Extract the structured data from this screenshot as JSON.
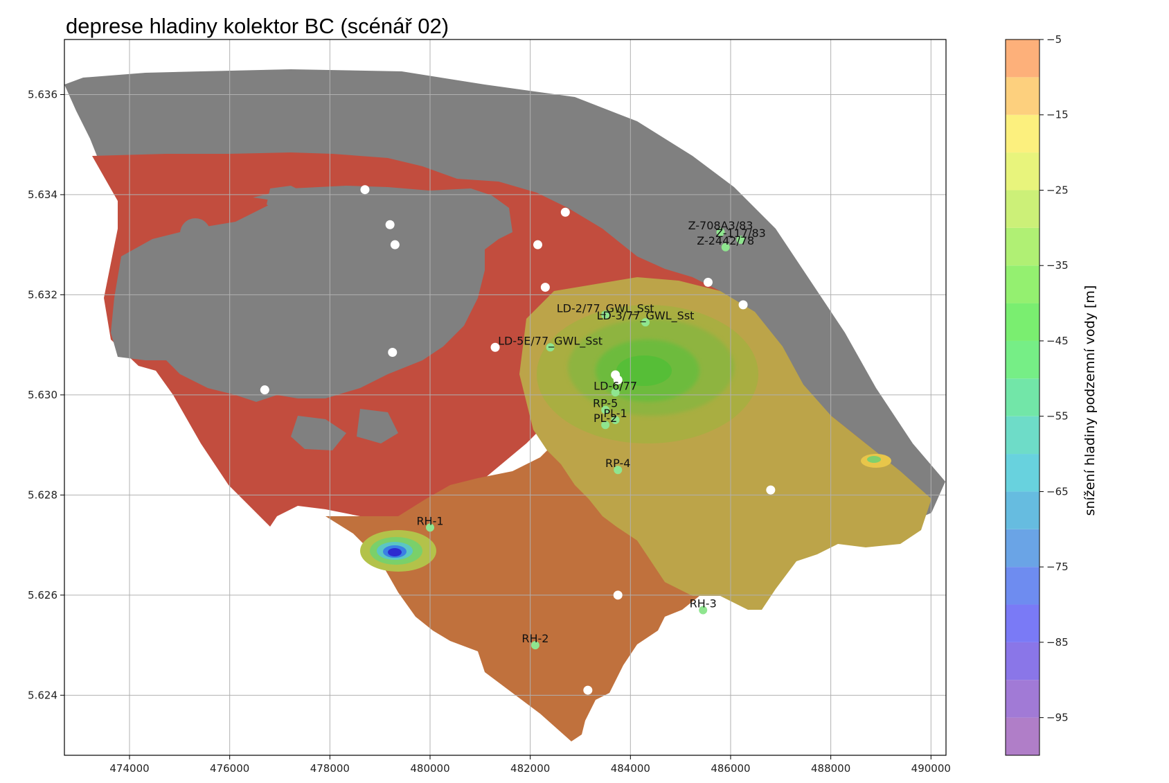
{
  "chart_data": {
    "type": "heatmap",
    "title": "deprese hladiny kolektor BC (scénář 02)",
    "xlabel": "",
    "ylabel": "",
    "y_offset_label": "",
    "xlim": [
      472700,
      490300
    ],
    "ylim": [
      5622800,
      5637100
    ],
    "xticks": [
      474000,
      476000,
      478000,
      480000,
      482000,
      484000,
      486000,
      488000,
      490000
    ],
    "xtick_labels": [
      "474000",
      "476000",
      "478000",
      "480000",
      "482000",
      "484000",
      "486000",
      "488000",
      "490000"
    ],
    "yticks": [
      5624000,
      5626000,
      5628000,
      5630000,
      5632000,
      5634000,
      5636000
    ],
    "ytick_labels": [
      "5.624",
      "5.626",
      "5.628",
      "5.630",
      "5.632",
      "5.634",
      "5.636"
    ],
    "grid": true,
    "colorbar": {
      "label": "snížení hladiny podzemní vody [m]",
      "range": [
        -100,
        -5
      ],
      "ticks": [
        -5,
        -15,
        -25,
        -35,
        -45,
        -55,
        -65,
        -75,
        -85,
        -95
      ],
      "tick_labels": [
        "−5",
        "−15",
        "−25",
        "−35",
        "−45",
        "−55",
        "−65",
        "−75",
        "−85",
        "−95"
      ],
      "levels": [
        -100,
        -95,
        -90,
        -85,
        -80,
        -75,
        -70,
        -65,
        -60,
        -55,
        -50,
        -45,
        -40,
        -35,
        -30,
        -25,
        -20,
        -15,
        -10,
        -5
      ],
      "colors": [
        "#b07ec8",
        "#a17ad6",
        "#8a76e8",
        "#7a7af6",
        "#6e8cf0",
        "#6aa4e6",
        "#66bce0",
        "#68d2de",
        "#6edcc8",
        "#72e6a8",
        "#76ee86",
        "#7aee70",
        "#94f070",
        "#b0f074",
        "#ccf078",
        "#e8f47c",
        "#fcf07e",
        "#fdd07e",
        "#fdb07a",
        "#fd8c76"
      ]
    },
    "inactive_color": "#808080",
    "wells_labeled": [
      {
        "name": "Z-708A3/83",
        "x": 485800,
        "y": 5633250
      },
      {
        "name": "Z-117/83",
        "x": 486200,
        "y": 5633100
      },
      {
        "name": "Z-2442/78",
        "x": 485900,
        "y": 5632950
      },
      {
        "name": "LD-2/77_GWL_Sst",
        "x": 483500,
        "y": 5631600
      },
      {
        "name": "LD-3/77_GWL_Sst",
        "x": 484300,
        "y": 5631450
      },
      {
        "name": "LD-5E/77_GWL_Sst",
        "x": 482400,
        "y": 5630950
      },
      {
        "name": "LD-6/77",
        "x": 483700,
        "y": 5630050
      },
      {
        "name": "RP-5",
        "x": 483500,
        "y": 5629700
      },
      {
        "name": "PL-1",
        "x": 483700,
        "y": 5629500
      },
      {
        "name": "PL-2",
        "x": 483500,
        "y": 5629400
      },
      {
        "name": "RP-4",
        "x": 483750,
        "y": 5628500
      },
      {
        "name": "RH-1",
        "x": 480000,
        "y": 5627350
      },
      {
        "name": "RH-2",
        "x": 482100,
        "y": 5625000
      },
      {
        "name": "RH-3",
        "x": 485450,
        "y": 5625700
      }
    ],
    "wells_unlabeled": [
      {
        "x": 478700,
        "y": 5634100
      },
      {
        "x": 479200,
        "y": 5633400
      },
      {
        "x": 479300,
        "y": 5633000
      },
      {
        "x": 482700,
        "y": 5633650
      },
      {
        "x": 482150,
        "y": 5633000
      },
      {
        "x": 482300,
        "y": 5632150
      },
      {
        "x": 485550,
        "y": 5632250
      },
      {
        "x": 486250,
        "y": 5631800
      },
      {
        "x": 479250,
        "y": 5630850
      },
      {
        "x": 476700,
        "y": 5630100
      },
      {
        "x": 481300,
        "y": 5630950
      },
      {
        "x": 483700,
        "y": 5630400
      },
      {
        "x": 483750,
        "y": 5630300
      },
      {
        "x": 486800,
        "y": 5628100
      },
      {
        "x": 483750,
        "y": 5626000
      },
      {
        "x": 483150,
        "y": 5624100
      }
    ]
  }
}
